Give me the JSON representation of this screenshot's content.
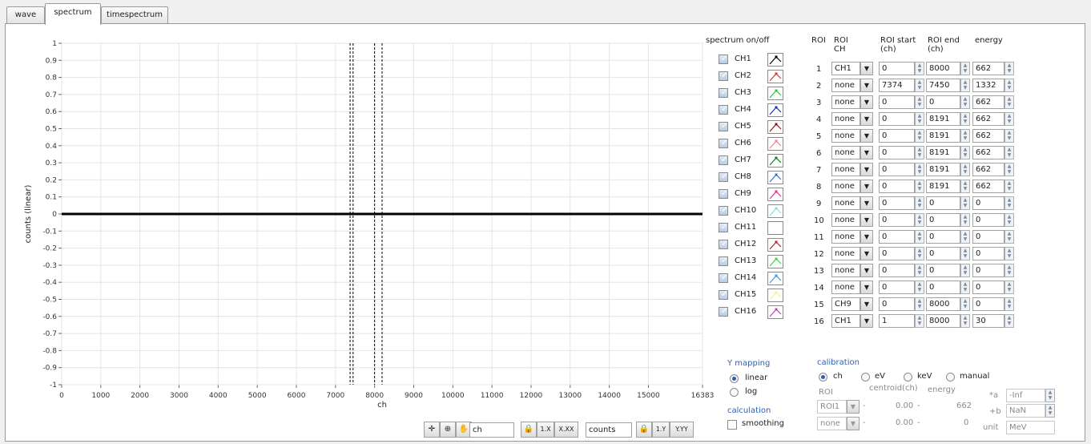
{
  "tabs": [
    {
      "label": "wave",
      "active": false
    },
    {
      "label": "spectrum",
      "active": true
    },
    {
      "label": "timespectrum",
      "active": false
    }
  ],
  "chart_data": {
    "type": "line",
    "title": "",
    "xlabel": "ch",
    "ylabel": "counts (linear)",
    "xlim": [
      0,
      16383
    ],
    "ylim": [
      -1,
      1
    ],
    "x_ticks": [
      "0",
      "1000",
      "2000",
      "3000",
      "4000",
      "5000",
      "6000",
      "7000",
      "8000",
      "9000",
      "10000",
      "11000",
      "12000",
      "13000",
      "14000",
      "15000",
      "16383"
    ],
    "x_tick_values": [
      0,
      1000,
      2000,
      3000,
      4000,
      5000,
      6000,
      7000,
      8000,
      9000,
      10000,
      11000,
      12000,
      13000,
      14000,
      15000,
      16383
    ],
    "y_ticks": [
      "1",
      "0.9",
      "0.8",
      "0.7",
      "0.6",
      "0.5",
      "0.4",
      "0.3",
      "0.2",
      "0.1",
      "0",
      "-0.1",
      "-0.2",
      "-0.3",
      "-0.4",
      "-0.5",
      "-0.6",
      "-0.7",
      "-0.8",
      "-0.9",
      "-1"
    ],
    "y_tick_values": [
      1,
      0.9,
      0.8,
      0.7,
      0.6,
      0.5,
      0.4,
      0.3,
      0.2,
      0.1,
      0,
      -0.1,
      -0.2,
      -0.3,
      -0.4,
      -0.5,
      -0.6,
      -0.7,
      -0.8,
      -0.9,
      -1
    ],
    "series": [
      {
        "x": [
          0,
          16383
        ],
        "y": [
          0,
          0
        ]
      }
    ],
    "roi_markers": [
      7374,
      7450,
      8000,
      8191
    ],
    "grid": true
  },
  "spectrum_onoff": {
    "title": "spectrum on/off",
    "channels": [
      {
        "label": "CH1",
        "checked": true,
        "color": "#000000"
      },
      {
        "label": "CH2",
        "checked": true,
        "color": "#e03030"
      },
      {
        "label": "CH3",
        "checked": true,
        "color": "#30c040"
      },
      {
        "label": "CH4",
        "checked": true,
        "color": "#1030c0"
      },
      {
        "label": "CH5",
        "checked": true,
        "color": "#901010"
      },
      {
        "label": "CH6",
        "checked": true,
        "color": "#f08090"
      },
      {
        "label": "CH7",
        "checked": true,
        "color": "#108020"
      },
      {
        "label": "CH8",
        "checked": true,
        "color": "#3070d0"
      },
      {
        "label": "CH9",
        "checked": true,
        "color": "#e03080"
      },
      {
        "label": "CH10",
        "checked": true,
        "color": "#80e0e0"
      },
      {
        "label": "CH11",
        "checked": true,
        "color": "#ffffff"
      },
      {
        "label": "CH12",
        "checked": true,
        "color": "#c02020"
      },
      {
        "label": "CH13",
        "checked": true,
        "color": "#40d040"
      },
      {
        "label": "CH14",
        "checked": true,
        "color": "#30a0e0"
      },
      {
        "label": "CH15",
        "checked": true,
        "color": "#f0f0a0"
      },
      {
        "label": "CH16",
        "checked": true,
        "color": "#c040c0"
      }
    ]
  },
  "roi_table": {
    "headers": {
      "roi": "ROI",
      "roi_ch_1": "ROI",
      "roi_ch_2": "CH",
      "start_1": "ROI start",
      "start_2": "(ch)",
      "end_1": "ROI end",
      "end_2": "(ch)",
      "energy": "energy"
    },
    "rows": [
      {
        "num": "1",
        "ch": "CH1",
        "start": "0",
        "end": "8000",
        "energy": "662"
      },
      {
        "num": "2",
        "ch": "none",
        "start": "7374",
        "end": "7450",
        "energy": "1332"
      },
      {
        "num": "3",
        "ch": "none",
        "start": "0",
        "end": "0",
        "energy": "662"
      },
      {
        "num": "4",
        "ch": "none",
        "start": "0",
        "end": "8191",
        "energy": "662"
      },
      {
        "num": "5",
        "ch": "none",
        "start": "0",
        "end": "8191",
        "energy": "662"
      },
      {
        "num": "6",
        "ch": "none",
        "start": "0",
        "end": "8191",
        "energy": "662"
      },
      {
        "num": "7",
        "ch": "none",
        "start": "0",
        "end": "8191",
        "energy": "662"
      },
      {
        "num": "8",
        "ch": "none",
        "start": "0",
        "end": "8191",
        "energy": "662"
      },
      {
        "num": "9",
        "ch": "none",
        "start": "0",
        "end": "0",
        "energy": "0"
      },
      {
        "num": "10",
        "ch": "none",
        "start": "0",
        "end": "0",
        "energy": "0"
      },
      {
        "num": "11",
        "ch": "none",
        "start": "0",
        "end": "0",
        "energy": "0"
      },
      {
        "num": "12",
        "ch": "none",
        "start": "0",
        "end": "0",
        "energy": "0"
      },
      {
        "num": "13",
        "ch": "none",
        "start": "0",
        "end": "0",
        "energy": "0"
      },
      {
        "num": "14",
        "ch": "none",
        "start": "0",
        "end": "0",
        "energy": "0"
      },
      {
        "num": "15",
        "ch": "CH9",
        "start": "0",
        "end": "8000",
        "energy": "0"
      },
      {
        "num": "16",
        "ch": "CH1",
        "start": "1",
        "end": "8000",
        "energy": "30"
      }
    ]
  },
  "y_mapping": {
    "title": "Y mapping",
    "options": [
      "linear",
      "log"
    ],
    "selected": "linear"
  },
  "calculation": {
    "title": "calculation",
    "smoothing_label": "smoothing",
    "smoothing": false
  },
  "calibration": {
    "title": "calibration",
    "options": [
      "ch",
      "eV",
      "keV",
      "manual"
    ],
    "selected": "ch",
    "roi_label": "ROI",
    "centroid_label": "centroid(ch)",
    "energy_label": "energy",
    "rows": [
      {
        "roi": "ROI1",
        "centroid": "0.00",
        "dash": "-",
        "energy": "662"
      },
      {
        "roi": "none",
        "centroid": "0.00",
        "dash": "-",
        "energy": "0"
      }
    ],
    "a_label": "*a",
    "a_value": "-Inf",
    "b_label": "+b",
    "b_value": "NaN",
    "unit_label": "unit",
    "unit_value": "MeV"
  },
  "graph_toolbar": {
    "x_name": "ch",
    "y_name": "counts",
    "x_scale": "1.X",
    "x_fmt": "X.XX",
    "y_scale": "1.Y",
    "y_fmt": "Y.YY"
  }
}
